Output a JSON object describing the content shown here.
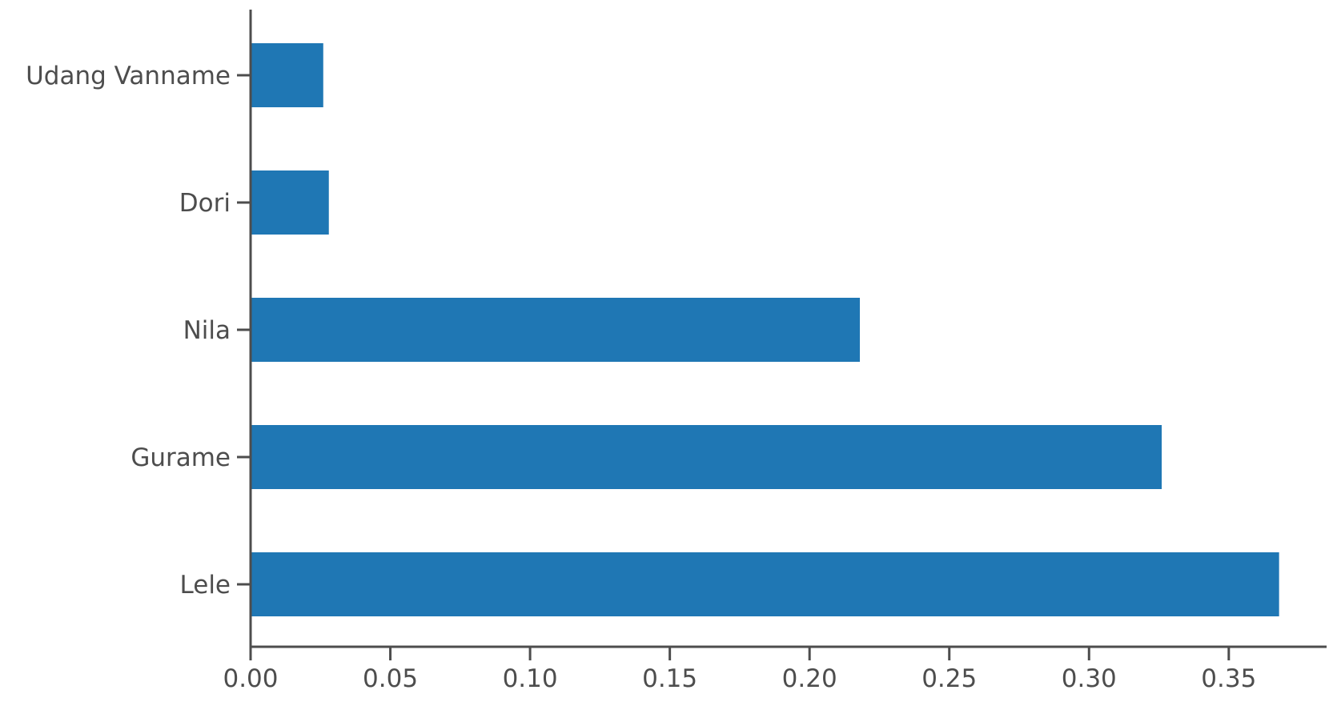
{
  "chart_data": {
    "type": "bar",
    "orientation": "horizontal",
    "categories": [
      "Udang Vanname",
      "Dori",
      "Nila",
      "Gurame",
      "Lele"
    ],
    "values": [
      0.026,
      0.028,
      0.218,
      0.326,
      0.368
    ],
    "title": "",
    "xlabel": "",
    "ylabel": "",
    "xlim": [
      0,
      0.385
    ],
    "xticks": [
      "0.00",
      "0.05",
      "0.10",
      "0.15",
      "0.20",
      "0.25",
      "0.30",
      "0.35"
    ],
    "xtick_values": [
      0,
      0.05,
      0.1,
      0.15,
      0.2,
      0.25,
      0.3,
      0.35
    ],
    "grid": false,
    "legend": "none",
    "colors": {
      "bar": "#1f77b4",
      "axis": "#4d4d4d",
      "text": "#4d4d4d"
    }
  }
}
